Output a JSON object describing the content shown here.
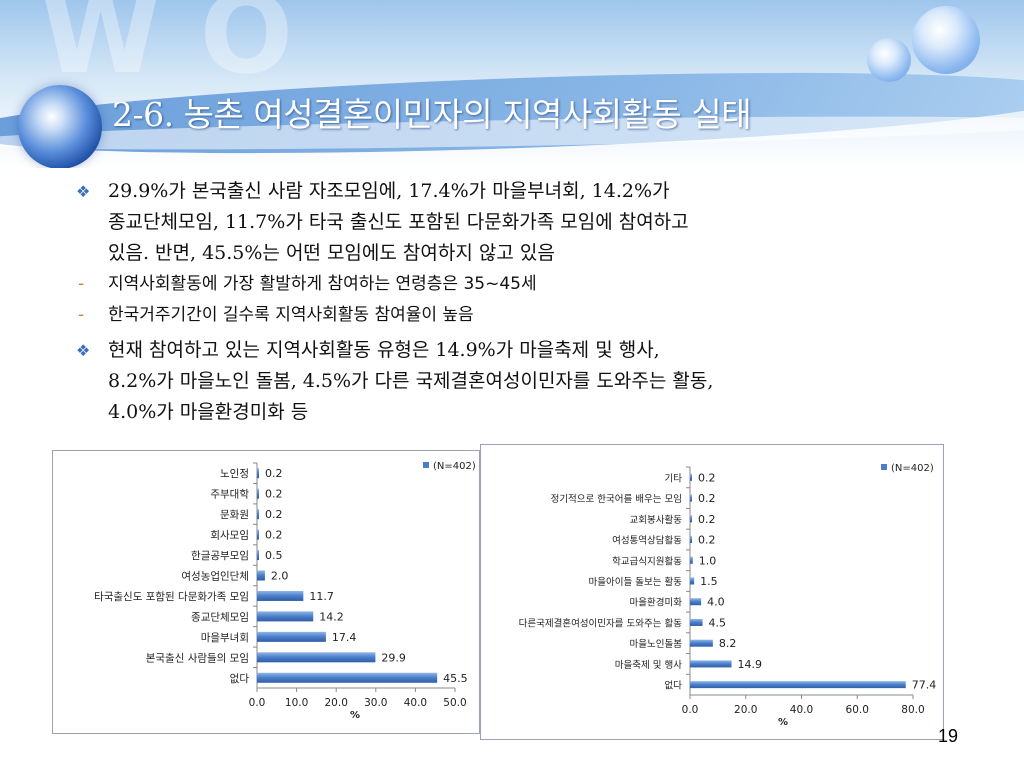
{
  "slide": {
    "title": "2-6. 농촌 여성결혼이민자의 지역사회활동 실태",
    "page_number": "19"
  },
  "bullets": [
    {
      "type": "diamond",
      "lines": [
        "29.9%가 본국출신 사람 자조모임에, 17.4%가 마을부녀회, 14.2%가",
        "종교단체모임, 11.7%가 타국 출신도 포함된 다문화가족 모임에 참여하고",
        "있음. 반면, 45.5%는 어떤 모임에도 참여하지 않고 있음"
      ]
    },
    {
      "type": "dash",
      "lines": [
        "지역사회활동에 가장 활발하게 참여하는 연령층은 35~45세"
      ]
    },
    {
      "type": "dash",
      "lines": [
        "한국거주기간이 길수록 지역사회활동 참여율이 높음"
      ]
    },
    {
      "type": "diamond",
      "lines": [
        "현재 참여하고 있는 지역사회활동 유형은 14.9%가 마을축제 및 행사,",
        "8.2%가 마을노인 돌봄, 4.5%가 다른 국제결혼여성이민자를 도와주는 활동,",
        "4.0%가 마을환경미화 등"
      ]
    }
  ],
  "chart_data": [
    {
      "type": "bar",
      "orientation": "horizontal",
      "categories": [
        "노인정",
        "주부대학",
        "문화원",
        "회사모임",
        "한글공부모임",
        "여성농업인단체",
        "타국출신도 포함된 다문화가족 모임",
        "종교단체모임",
        "마을부녀회",
        "본국출신 사람들의 모임",
        "없다"
      ],
      "values": [
        0.2,
        0.2,
        0.2,
        0.2,
        0.5,
        2.0,
        11.7,
        14.2,
        17.4,
        29.9,
        45.5
      ],
      "value_labels": [
        "0.2",
        "0.2",
        "0.2",
        "0.2",
        "0.5",
        "2.0",
        "11.7",
        "14.2",
        "17.4",
        "29.9",
        "45.5"
      ],
      "series": [
        {
          "name": "(N=402)"
        }
      ],
      "xlabel": "%",
      "xlim": [
        0,
        50
      ],
      "xticks": [
        "0.0",
        "10.0",
        "20.0",
        "30.0",
        "40.0",
        "50.0"
      ],
      "legend": "top-right",
      "grid": false,
      "bar_color": "#4a7ec8"
    },
    {
      "type": "bar",
      "orientation": "horizontal",
      "categories": [
        "기타",
        "정기적으로 한국어를 배우는 모임",
        "교회봉사활동",
        "여성통역상담활동",
        "학교급식지원활동",
        "마을아이들 돌보는 활동",
        "마을환경미화",
        "다른국제결혼여성이민자를 도와주는 활동",
        "마을노인돌봄",
        "마을축제 및 행사",
        "없다"
      ],
      "values": [
        0.2,
        0.2,
        0.2,
        0.2,
        1.0,
        1.5,
        4.0,
        4.5,
        8.2,
        14.9,
        77.4
      ],
      "value_labels": [
        "0.2",
        "0.2",
        "0.2",
        "0.2",
        "1.0",
        "1.5",
        "4.0",
        "4.5",
        "8.2",
        "14.9",
        "77.4"
      ],
      "series": [
        {
          "name": "(N=402)"
        }
      ],
      "xlabel": "%",
      "xlim": [
        0,
        80
      ],
      "xticks": [
        "0.0",
        "20.0",
        "40.0",
        "60.0",
        "80.0"
      ],
      "legend": "top-right",
      "grid": false,
      "bar_color": "#4a7ec8"
    }
  ]
}
